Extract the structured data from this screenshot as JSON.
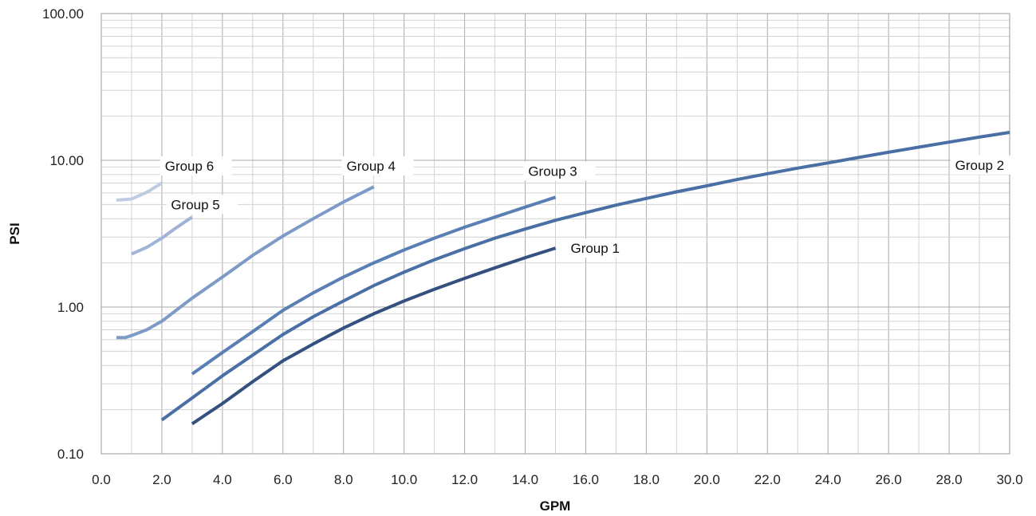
{
  "chart_data": {
    "type": "line",
    "title": "",
    "xlabel": "GPM",
    "ylabel": "PSI",
    "xlim": [
      0,
      30
    ],
    "ylim": [
      0.1,
      100
    ],
    "yscale": "log",
    "grid": true,
    "x_ticks": [
      "0.0",
      "2.0",
      "4.0",
      "6.0",
      "8.0",
      "10.0",
      "12.0",
      "14.0",
      "16.0",
      "18.0",
      "20.0",
      "22.0",
      "24.0",
      "26.0",
      "28.0",
      "30.0"
    ],
    "y_ticks": [
      "0.10",
      "1.00",
      "10.00",
      "100.00"
    ],
    "series": [
      {
        "name": "Group 1",
        "color": "#34507e",
        "x": [
          3,
          4,
          5,
          6,
          7,
          8,
          9,
          10,
          11,
          12,
          13,
          14,
          15
        ],
        "y": [
          0.16,
          0.22,
          0.31,
          0.43,
          0.56,
          0.72,
          0.9,
          1.1,
          1.32,
          1.57,
          1.85,
          2.17,
          2.52
        ]
      },
      {
        "name": "Group 2",
        "color": "#4a6fa5",
        "x": [
          2,
          3,
          4,
          5,
          6,
          7,
          8,
          9,
          10,
          11,
          12,
          13,
          14,
          15,
          16,
          17,
          18,
          19,
          20,
          21,
          22,
          23,
          24,
          25,
          26,
          27,
          28,
          29,
          30
        ],
        "y": [
          0.17,
          0.24,
          0.34,
          0.47,
          0.65,
          0.86,
          1.1,
          1.4,
          1.73,
          2.1,
          2.5,
          2.95,
          3.4,
          3.9,
          4.4,
          4.95,
          5.5,
          6.1,
          6.7,
          7.4,
          8.1,
          8.85,
          9.6,
          10.45,
          11.35,
          12.3,
          13.3,
          14.4,
          15.5
        ]
      },
      {
        "name": "Group 3",
        "color": "#5a7fb4",
        "x": [
          3,
          4,
          5,
          6,
          7,
          8,
          9,
          10,
          11,
          12,
          13,
          14,
          15
        ],
        "y": [
          0.35,
          0.49,
          0.68,
          0.95,
          1.25,
          1.6,
          2.0,
          2.45,
          2.95,
          3.5,
          4.1,
          4.8,
          5.6
        ]
      },
      {
        "name": "Group 4",
        "color": "#7d9bc6",
        "x": [
          0.5,
          0.8,
          1,
          1.5,
          2,
          3,
          4,
          5,
          6,
          7,
          8,
          9
        ],
        "y": [
          0.62,
          0.62,
          0.64,
          0.7,
          0.8,
          1.15,
          1.6,
          2.25,
          3.05,
          4.0,
          5.2,
          6.6
        ]
      },
      {
        "name": "Group 5",
        "color": "#9fb4d6",
        "x": [
          1,
          1.5,
          2,
          2.5,
          3
        ],
        "y": [
          2.3,
          2.55,
          2.95,
          3.5,
          4.1
        ]
      },
      {
        "name": "Group 6",
        "color": "#bfcbe2",
        "x": [
          0.5,
          1,
          1.5,
          2
        ],
        "y": [
          5.35,
          5.45,
          6.05,
          7.0
        ]
      }
    ],
    "annotations": [
      {
        "text": "Group 1",
        "x": 15.5,
        "y": 2.52
      },
      {
        "text": "Group 2",
        "x": 28.2,
        "y": 9.3
      },
      {
        "text": "Group 3",
        "x": 14.1,
        "y": 8.45
      },
      {
        "text": "Group 4",
        "x": 8.1,
        "y": 9.15
      },
      {
        "text": "Group 5",
        "x": 2.3,
        "y": 5.0
      },
      {
        "text": "Group 6",
        "x": 2.1,
        "y": 9.15
      }
    ]
  }
}
